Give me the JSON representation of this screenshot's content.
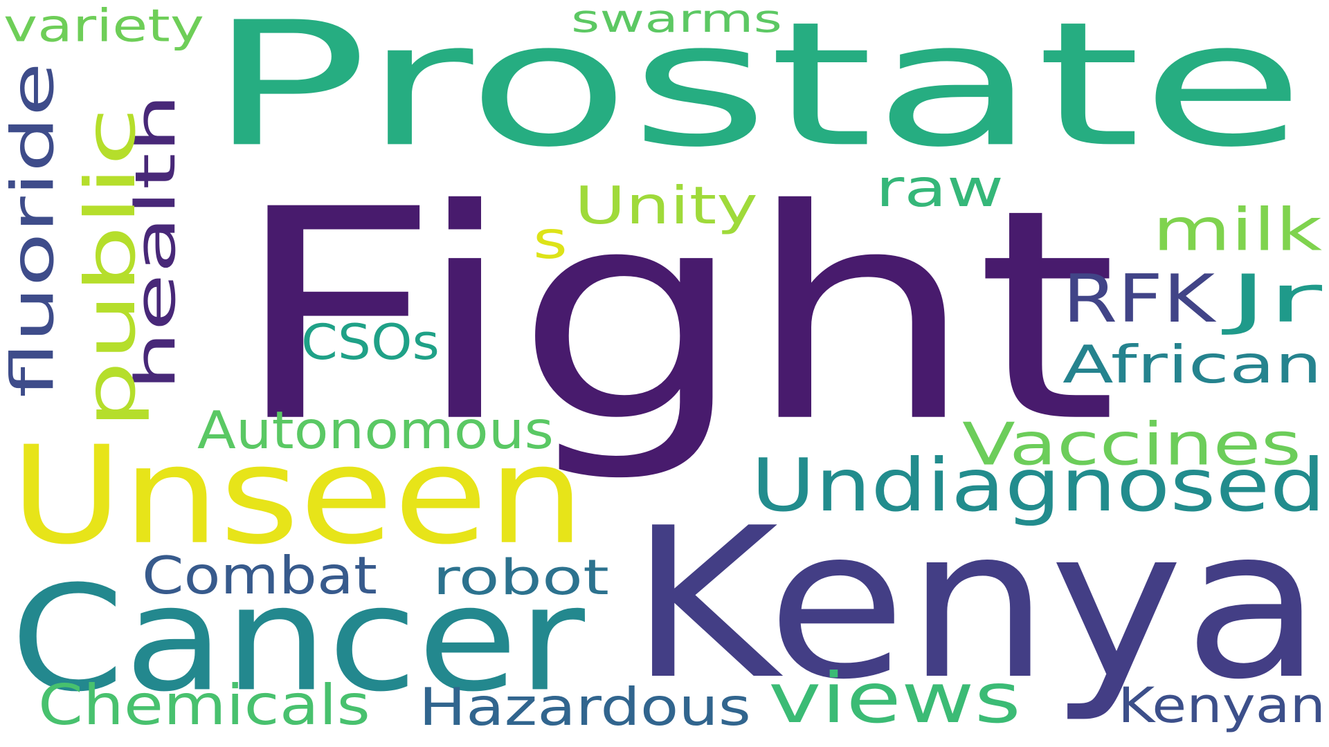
{
  "words": [
    {
      "id": "fight",
      "text": "Fight",
      "color": "#481b6d"
    },
    {
      "id": "prostate",
      "text": "Prostate",
      "color": "#26ad81"
    },
    {
      "id": "kenya",
      "text": "Kenya",
      "color": "#433e85"
    },
    {
      "id": "cancer",
      "text": "Cancer",
      "color": "#23888e"
    },
    {
      "id": "unseen",
      "text": "Unseen",
      "color": "#e7e419"
    },
    {
      "id": "undiagnosed",
      "text": "Undiagnosed",
      "color": "#228c8d"
    },
    {
      "id": "vaccines",
      "text": "Vaccines",
      "color": "#6ccd5a"
    },
    {
      "id": "views",
      "text": "views",
      "color": "#3bbb75"
    },
    {
      "id": "autonomous",
      "text": "Autonomous",
      "color": "#5ac864"
    },
    {
      "id": "combat",
      "text": "Combat",
      "color": "#375a8c"
    },
    {
      "id": "robot",
      "text": "robot",
      "color": "#2c728e"
    },
    {
      "id": "chemicals",
      "text": "Chemicals",
      "color": "#48c16e"
    },
    {
      "id": "hazardous",
      "text": "Hazardous",
      "color": "#31658e"
    },
    {
      "id": "kenyan",
      "text": "Kenyan",
      "color": "#3c4f8a"
    },
    {
      "id": "african",
      "text": "African",
      "color": "#25838e"
    },
    {
      "id": "rfk",
      "text": "RFK",
      "color": "#414487"
    },
    {
      "id": "jr",
      "text": "Jr",
      "color": "#1f9a8a"
    },
    {
      "id": "milk",
      "text": "milk",
      "color": "#7fd34e"
    },
    {
      "id": "raw",
      "text": "raw",
      "color": "#35b779"
    },
    {
      "id": "unity",
      "text": "Unity",
      "color": "#9fda3a"
    },
    {
      "id": "cs0s",
      "text": "CSOs",
      "color": "#1fa187"
    },
    {
      "id": "s",
      "text": "s",
      "color": "#dde318"
    },
    {
      "id": "swarms",
      "text": "swarms",
      "color": "#5cc863"
    },
    {
      "id": "variety",
      "text": "variety",
      "color": "#6ece58"
    },
    {
      "id": "health",
      "text": "health",
      "color": "#482878"
    },
    {
      "id": "public",
      "text": "public",
      "color": "#b5de2b"
    },
    {
      "id": "fluoride",
      "text": "fluoride",
      "color": "#3e4c8a"
    }
  ]
}
